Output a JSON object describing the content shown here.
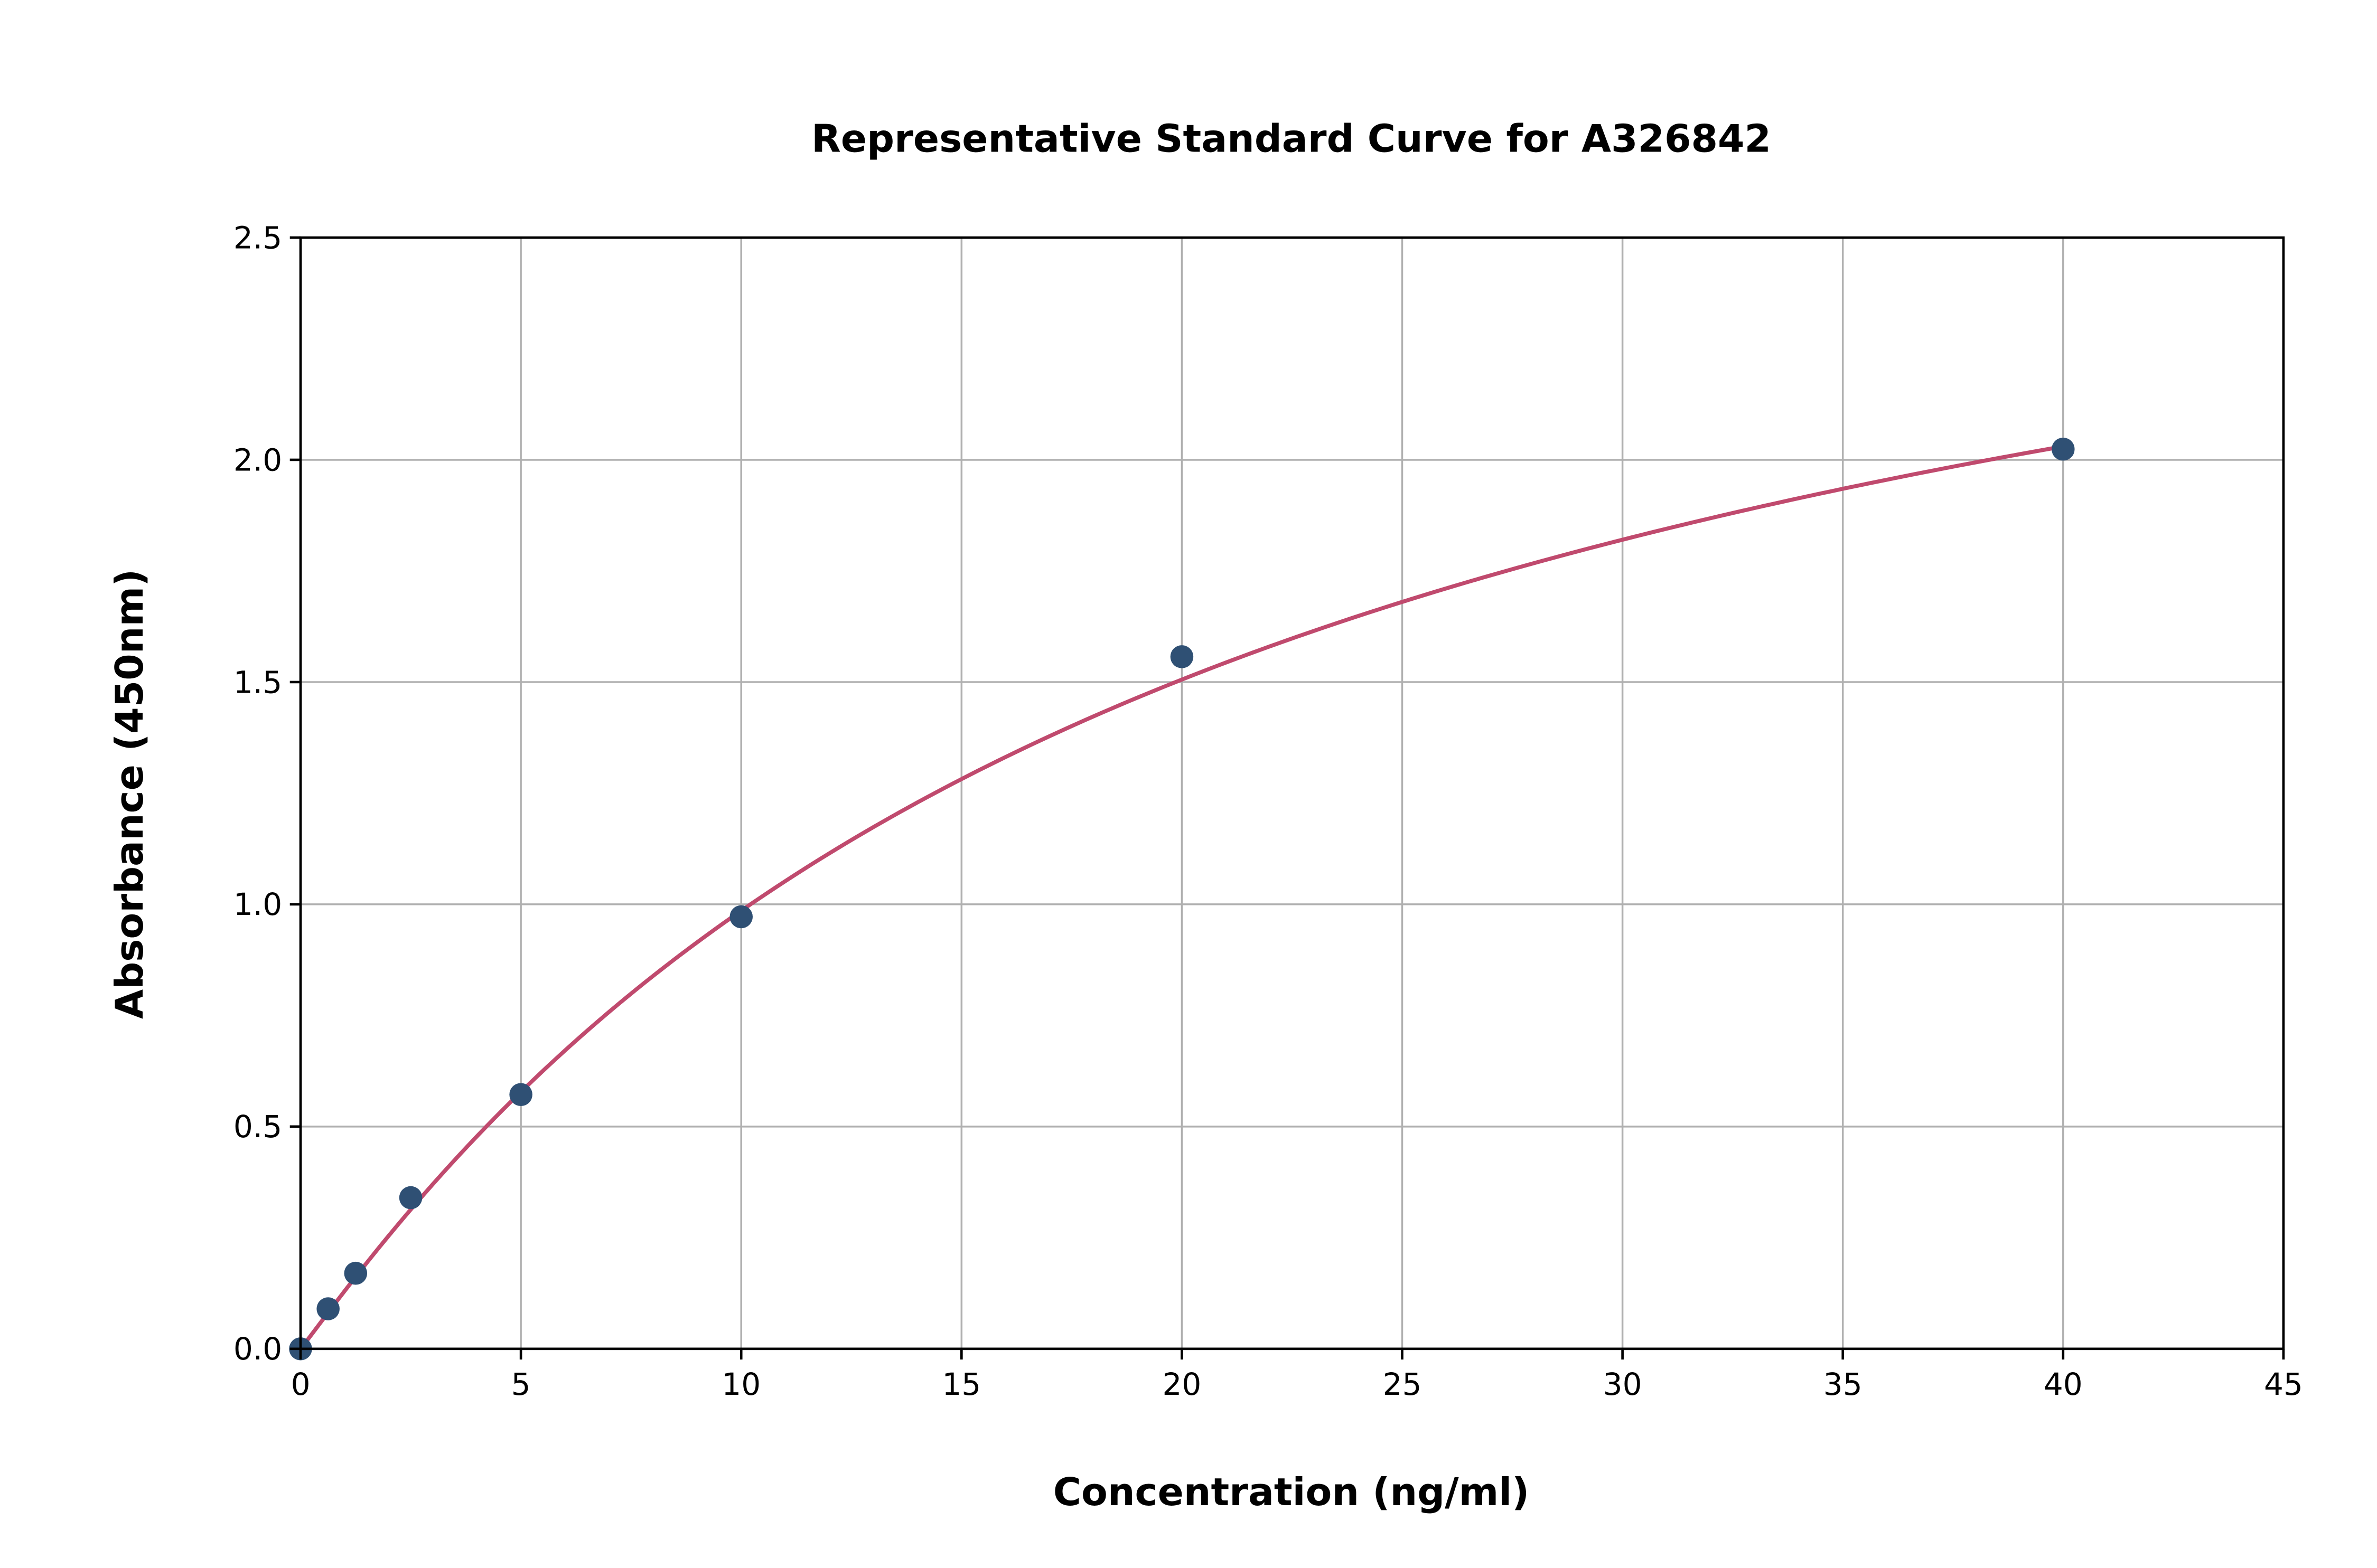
{
  "chart_data": {
    "type": "scatter",
    "title": "Representative Standard Curve for A326842",
    "xlabel": "Concentration (ng/ml)",
    "ylabel": "Absorbance (450nm)",
    "xlim": [
      0,
      45
    ],
    "ylim": [
      0,
      2.5
    ],
    "xticks": [
      "0",
      "5",
      "10",
      "15",
      "20",
      "25",
      "30",
      "35",
      "40",
      "45"
    ],
    "yticks": [
      "0.0",
      "0.5",
      "1.0",
      "1.5",
      "2.0",
      "2.5"
    ],
    "grid": true,
    "points": [
      {
        "x": 0,
        "y": 0.0
      },
      {
        "x": 0.625,
        "y": 0.09
      },
      {
        "x": 1.25,
        "y": 0.17
      },
      {
        "x": 2.5,
        "y": 0.34
      },
      {
        "x": 5,
        "y": 0.572
      },
      {
        "x": 10,
        "y": 0.972
      },
      {
        "x": 20,
        "y": 1.557
      },
      {
        "x": 40,
        "y": 2.024
      }
    ],
    "fit_curve": {
      "type": "line",
      "x_range": [
        0,
        40
      ]
    },
    "colors": {
      "points": "#2f5074",
      "curve": "#c04a6e"
    }
  }
}
